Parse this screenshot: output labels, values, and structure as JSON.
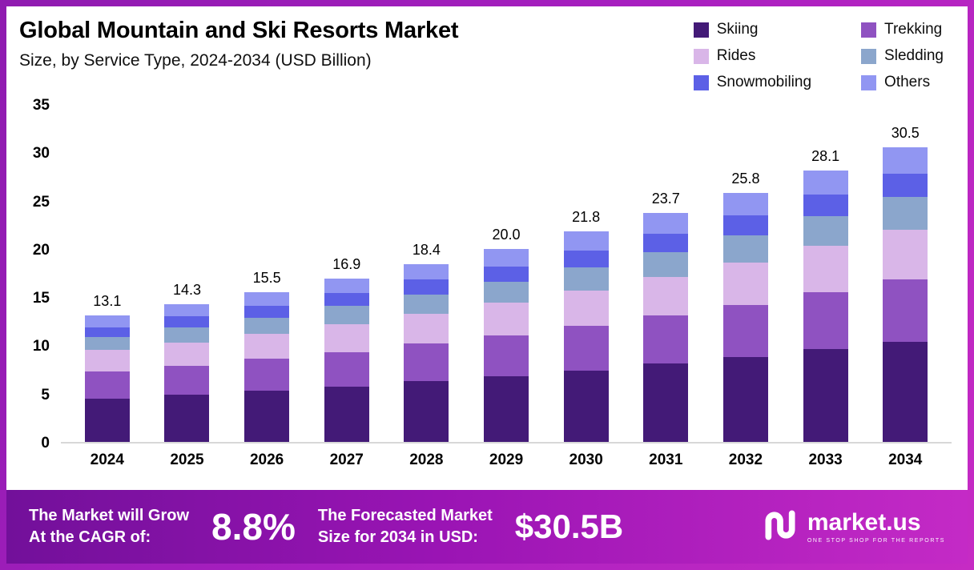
{
  "header": {
    "title": "Global Mountain and Ski Resorts Market",
    "subtitle": "Size, by  Service Type, 2024-2034 (USD Billion)"
  },
  "chart_data": {
    "type": "bar",
    "stacked": true,
    "title": "Global Mountain and Ski Resorts Market Size, by Service Type, 2024-2034 (USD Billion)",
    "xlabel": "",
    "ylabel": "USD Billion",
    "ylim": [
      0,
      35
    ],
    "yticks": [
      0,
      5,
      10,
      15,
      20,
      25,
      30,
      35
    ],
    "grid": false,
    "legend_position": "top-right",
    "categories": [
      "2024",
      "2025",
      "2026",
      "2027",
      "2028",
      "2029",
      "2030",
      "2031",
      "2032",
      "2033",
      "2034"
    ],
    "totals": [
      "13.1",
      "14.3",
      "15.5",
      "16.9",
      "18.4",
      "20.0",
      "21.8",
      "23.7",
      "25.8",
      "28.1",
      "30.5"
    ],
    "series": [
      {
        "name": "Skiing",
        "color": "#431a77",
        "values": [
          4.5,
          4.9,
          5.3,
          5.7,
          6.3,
          6.8,
          7.4,
          8.1,
          8.8,
          9.6,
          10.4
        ]
      },
      {
        "name": "Trekking",
        "color": "#8f52c1",
        "values": [
          2.8,
          3.0,
          3.3,
          3.6,
          3.9,
          4.2,
          4.6,
          5.0,
          5.4,
          5.9,
          6.4
        ]
      },
      {
        "name": "Rides",
        "color": "#d9b6e8",
        "values": [
          2.2,
          2.4,
          2.6,
          2.9,
          3.1,
          3.4,
          3.7,
          4.0,
          4.4,
          4.8,
          5.2
        ]
      },
      {
        "name": "Sledding",
        "color": "#8ba6cc",
        "values": [
          1.4,
          1.6,
          1.7,
          1.9,
          2.0,
          2.2,
          2.4,
          2.6,
          2.8,
          3.1,
          3.4
        ]
      },
      {
        "name": "Snowmobiling",
        "color": "#5c60e6",
        "values": [
          1.0,
          1.1,
          1.2,
          1.3,
          1.5,
          1.6,
          1.7,
          1.9,
          2.1,
          2.2,
          2.4
        ]
      },
      {
        "name": "Others",
        "color": "#9196f2",
        "values": [
          1.2,
          1.3,
          1.4,
          1.5,
          1.6,
          1.8,
          2.0,
          2.1,
          2.3,
          2.5,
          2.7
        ]
      }
    ]
  },
  "banner": {
    "cagr_label_line1": "The Market will Grow",
    "cagr_label_line2": "At the CAGR of:",
    "cagr_value": "8.8%",
    "forecast_label_line1": "The Forecasted Market",
    "forecast_label_line2": "Size for 2034 in USD:",
    "forecast_value": "$30.5B",
    "brand_name": "market.us",
    "brand_tagline": "ONE STOP SHOP FOR THE REPORTS"
  },
  "colors": {
    "frame_border": "#a81fc0",
    "banner_gradient_start": "#72109a",
    "banner_gradient_end": "#c42ac6",
    "axis_line": "#d8d8d8"
  }
}
